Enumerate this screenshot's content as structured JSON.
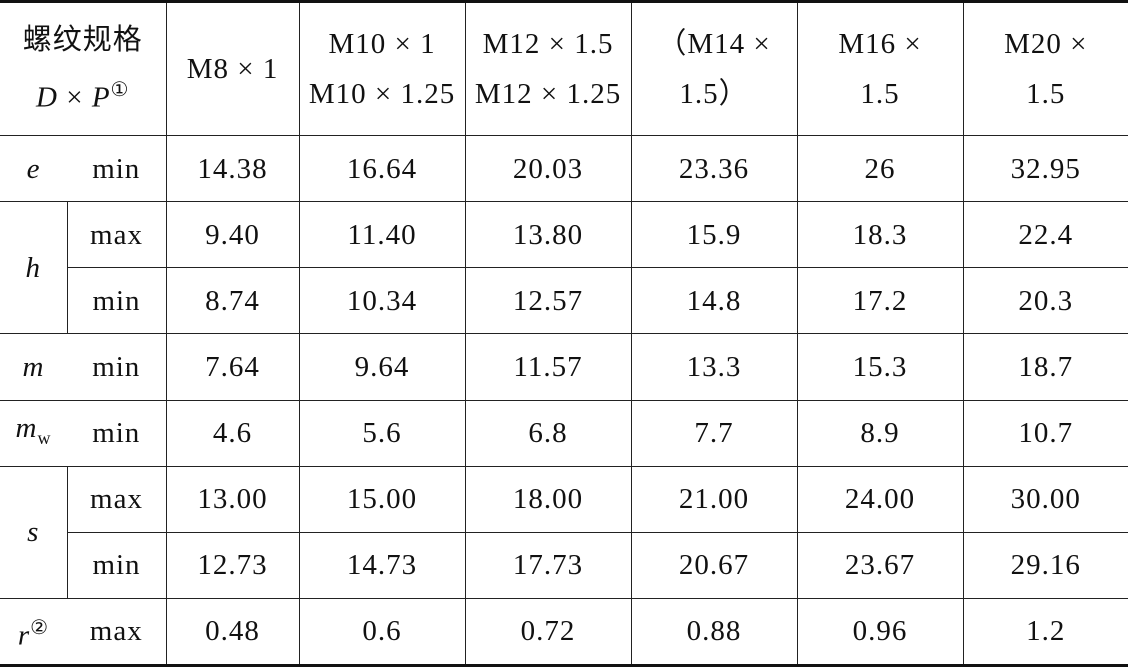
{
  "header": {
    "spec_label_line1": "螺纹规格",
    "spec_label_line2_D": "D",
    "spec_label_line2_times": " × ",
    "spec_label_line2_P": "P",
    "spec_label_note": "①",
    "columns": [
      {
        "line1": "M8 × 1",
        "line2": ""
      },
      {
        "line1": "M10 × 1",
        "line2": "M10 × 1.25"
      },
      {
        "line1": "M12 × 1.5",
        "line2": "M12 × 1.25"
      },
      {
        "line1": "（M14 ×",
        "line2": "1.5）"
      },
      {
        "line1": "M16 ×",
        "line2": "1.5"
      },
      {
        "line1": "M20 ×",
        "line2": "1.5"
      }
    ]
  },
  "rows": {
    "e": {
      "symbol": "e",
      "min_label": "min",
      "min": [
        "14.38",
        "16.64",
        "20.03",
        "23.36",
        "26",
        "32.95"
      ]
    },
    "h": {
      "symbol": "h",
      "max_label": "max",
      "min_label": "min",
      "max": [
        "9.40",
        "11.40",
        "13.80",
        "15.9",
        "18.3",
        "22.4"
      ],
      "min": [
        "8.74",
        "10.34",
        "12.57",
        "14.8",
        "17.2",
        "20.3"
      ]
    },
    "m": {
      "symbol": "m",
      "min_label": "min",
      "min": [
        "7.64",
        "9.64",
        "11.57",
        "13.3",
        "15.3",
        "18.7"
      ]
    },
    "mw": {
      "symbol": "m",
      "sub": "w",
      "min_label": "min",
      "min": [
        "4.6",
        "5.6",
        "6.8",
        "7.7",
        "8.9",
        "10.7"
      ]
    },
    "s": {
      "symbol": "s",
      "max_label": "max",
      "min_label": "min",
      "max": [
        "13.00",
        "15.00",
        "18.00",
        "21.00",
        "24.00",
        "30.00"
      ],
      "min": [
        "12.73",
        "14.73",
        "17.73",
        "20.67",
        "23.67",
        "29.16"
      ]
    },
    "r": {
      "symbol": "r",
      "note": "②",
      "max_label": "max",
      "max": [
        "0.48",
        "0.6",
        "0.72",
        "0.88",
        "0.96",
        "1.2"
      ]
    }
  }
}
